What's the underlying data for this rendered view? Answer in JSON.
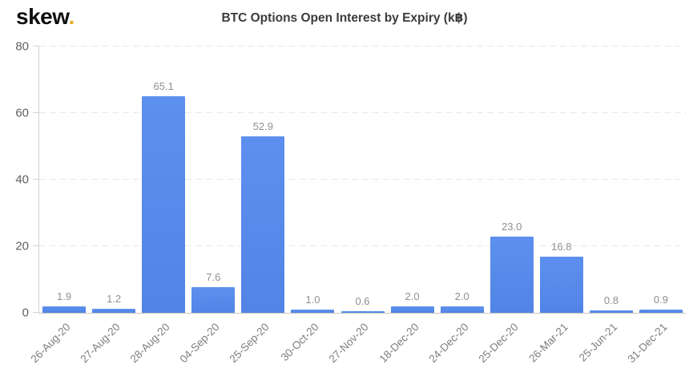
{
  "logo": {
    "text": "skew",
    "dot": ".",
    "dot_color": "#e9ad2b",
    "text_color": "#101010"
  },
  "title": "BTC Options Open Interest by Expiry (k฿)",
  "chart_data": {
    "type": "bar",
    "title": "BTC Options Open Interest by Expiry (k฿)",
    "categories": [
      "26-Aug-20",
      "27-Aug-20",
      "28-Aug-20",
      "04-Sep-20",
      "25-Sep-20",
      "30-Oct-20",
      "27-Nov-20",
      "18-Dec-20",
      "24-Dec-20",
      "25-Dec-20",
      "26-Mar-21",
      "25-Jun-21",
      "31-Dec-21"
    ],
    "values": [
      1.9,
      1.2,
      65.1,
      7.6,
      52.9,
      1.0,
      0.6,
      2.0,
      2.0,
      23.0,
      16.8,
      0.8,
      0.9
    ],
    "value_labels": [
      "1.9",
      "1.2",
      "65.1",
      "7.6",
      "52.9",
      "1.0",
      "0.6",
      "2.0",
      "2.0",
      "23.0",
      "16.8",
      "0.8",
      "0.9"
    ],
    "xlabel": "",
    "ylabel": "",
    "ylim": [
      0,
      80
    ],
    "yticks": [
      0,
      20,
      40,
      60,
      80
    ],
    "grid": "horizontal-dashed",
    "legend": "none",
    "bar_color": "#578ae8",
    "value_label_color": "#8f8f8f",
    "x_label_color": "#7e7e7e",
    "y_label_color": "#5f5f5f",
    "x_label_rotation_deg": -45
  }
}
